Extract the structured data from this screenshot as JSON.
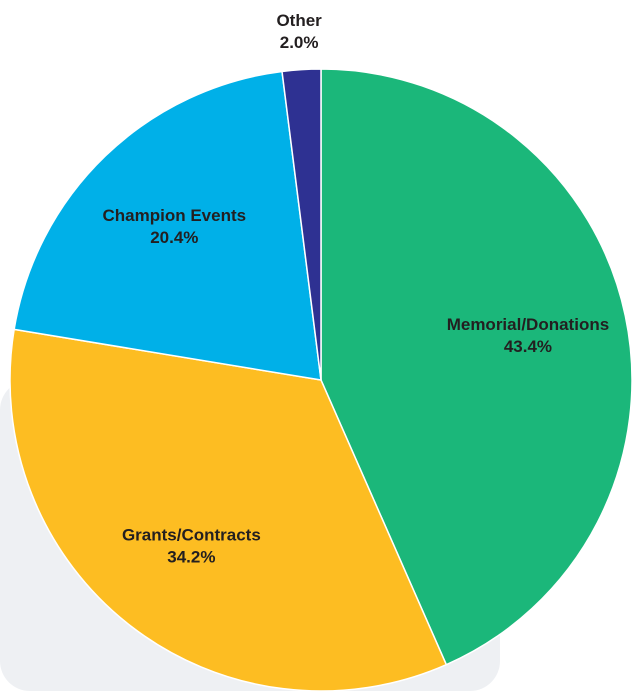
{
  "chart_data": {
    "type": "pie",
    "categories": [
      "Memorial/Donations",
      "Grants/Contracts",
      "Champion Events",
      "Other"
    ],
    "values": [
      43.4,
      34.2,
      20.4,
      2.0
    ],
    "value_labels": [
      "43.4%",
      "34.2%",
      "20.4%",
      "2.0%"
    ],
    "colors": [
      "#1bb77a",
      "#fdbd22",
      "#00b0e8",
      "#2e3192"
    ]
  }
}
